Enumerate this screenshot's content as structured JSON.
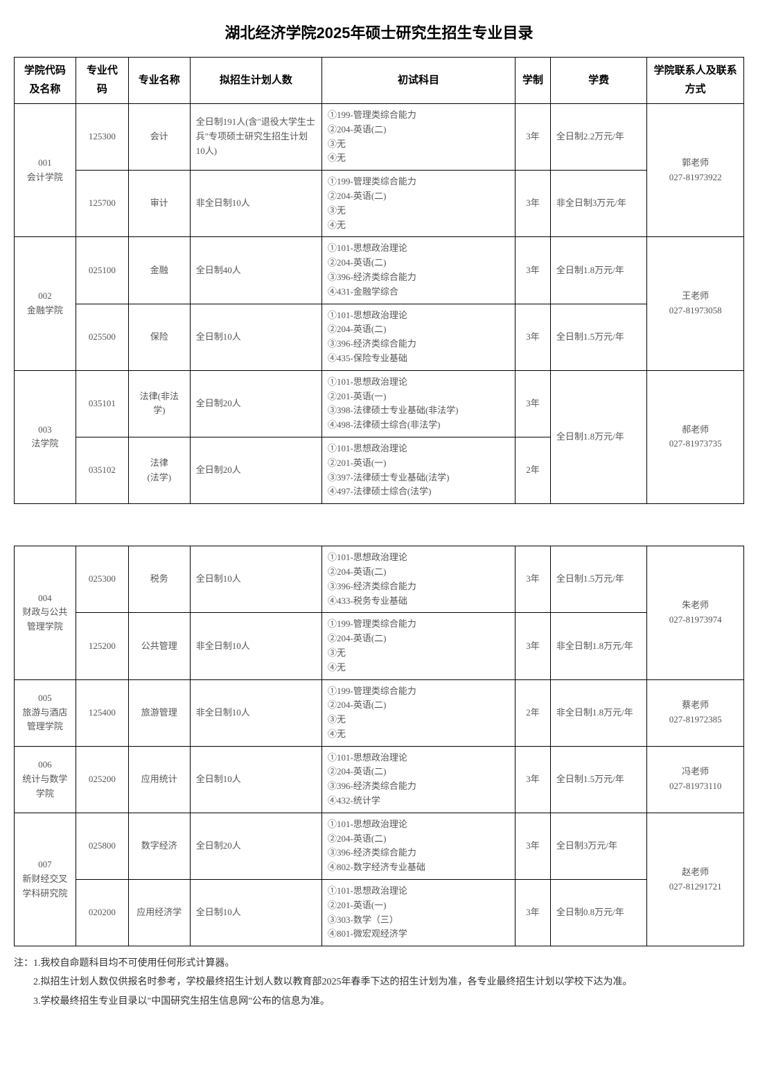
{
  "title": "湖北经济学院2025年硕士研究生招生专业目录",
  "headers": {
    "col1": "学院代码及名称",
    "col2": "专业代码",
    "col3": "专业名称",
    "col4": "拟招生计划人数",
    "col5": "初试科目",
    "col6": "学制",
    "col7": "学费",
    "col8": "学院联系人及联系方式"
  },
  "rows": [
    {
      "dept": "001\n会计学院",
      "deptRowspan": 2,
      "code": "125300",
      "name": "会计",
      "plan": "全日制191人(含\"退役大学生士兵\"专项硕士研究生招生计划10人)",
      "exam": "①199-管理类综合能力\n②204-英语(二)\n③无\n④无",
      "years": "3年",
      "fee": "全日制2.2万元/年",
      "contact": "郭老师\n027-81973922",
      "contactRowspan": 2
    },
    {
      "code": "125700",
      "name": "审计",
      "plan": "非全日制10人",
      "exam": "①199-管理类综合能力\n②204-英语(二)\n③无\n④无",
      "years": "3年",
      "fee": "非全日制3万元/年"
    },
    {
      "dept": "002\n金融学院",
      "deptRowspan": 2,
      "code": "025100",
      "name": "金融",
      "plan": "全日制40人",
      "exam": "①101-思想政治理论\n②204-英语(二)\n③396-经济类综合能力\n④431-金融学综合",
      "years": "3年",
      "fee": "全日制1.8万元/年",
      "contact": "王老师\n027-81973058",
      "contactRowspan": 2
    },
    {
      "code": "025500",
      "name": "保险",
      "plan": "全日制10人",
      "exam": "①101-思想政治理论\n②204-英语(二)\n③396-经济类综合能力\n④435-保险专业基础",
      "years": "3年",
      "fee": "全日制1.5万元/年"
    },
    {
      "dept": "003\n法学院",
      "deptRowspan": 2,
      "code": "035101",
      "name": "法律(非法学)",
      "plan": "全日制20人",
      "exam": "①101-思想政治理论\n②201-英语(一)\n③398-法律硕士专业基础(非法学)\n④498-法律硕士综合(非法学)",
      "years": "3年",
      "fee": "全日制1.8万元/年",
      "feeRowspan": 2,
      "contact": "郝老师\n027-81973735",
      "contactRowspan": 2
    },
    {
      "code": "035102",
      "name": "法律\n(法学)",
      "plan": "全日制20人",
      "exam": "①101-思想政治理论\n②201-英语(一)\n③397-法律硕士专业基础(法学)\n④497-法律硕士综合(法学)",
      "years": "2年"
    }
  ],
  "rows2": [
    {
      "dept": "004\n财政与公共管理学院",
      "deptRowspan": 2,
      "code": "025300",
      "name": "税务",
      "plan": "全日制10人",
      "exam": "①101-思想政治理论\n②204-英语(二)\n③396-经济类综合能力\n④433-税务专业基础",
      "years": "3年",
      "fee": "全日制1.5万元/年",
      "contact": "朱老师\n027-81973974",
      "contactRowspan": 2
    },
    {
      "code": "125200",
      "name": "公共管理",
      "plan": "非全日制10人",
      "exam": "①199-管理类综合能力\n②204-英语(二)\n③无\n④无",
      "years": "3年",
      "fee": "非全日制1.8万元/年"
    },
    {
      "dept": "005\n旅游与酒店管理学院",
      "deptRowspan": 1,
      "code": "125400",
      "name": "旅游管理",
      "plan": "非全日制10人",
      "exam": "①199-管理类综合能力\n②204-英语(二)\n③无\n④无",
      "years": "2年",
      "fee": "非全日制1.8万元/年",
      "contact": "蔡老师\n027-81972385",
      "contactRowspan": 1
    },
    {
      "dept": "006\n统计与数学学院",
      "deptRowspan": 1,
      "code": "025200",
      "name": "应用统计",
      "plan": "全日制10人",
      "exam": "①101-思想政治理论\n②204-英语(二)\n③396-经济类综合能力\n④432-统计学",
      "years": "3年",
      "fee": "全日制1.5万元/年",
      "contact": "冯老师\n027-81973110",
      "contactRowspan": 1
    },
    {
      "dept": "007\n新财经交叉学科研究院",
      "deptRowspan": 2,
      "code": "025800",
      "name": "数字经济",
      "plan": "全日制20人",
      "exam": "①101-思想政治理论\n②204-英语(二)\n③396-经济类综合能力\n④802-数字经济专业基础",
      "years": "3年",
      "fee": "全日制3万元/年",
      "contact": "赵老师\n027-81291721",
      "contactRowspan": 2
    },
    {
      "code": "020200",
      "name": "应用经济学",
      "plan": "全日制10人",
      "exam": "①101-思想政治理论\n②201-英语(一)\n③303-数学（三）\n④801-微宏观经济学",
      "years": "3年",
      "fee": "全日制0.8万元/年"
    }
  ],
  "notes": [
    "注：1.我校自命题科目均不可使用任何形式计算器。",
    "　　2.拟招生计划人数仅供报名时参考，学校最终招生计划人数以教育部2025年春季下达的招生计划为准，各专业最终招生计划以学校下达为准。",
    "　　3.学校最终招生专业目录以\"中国研究生招生信息网\"公布的信息为准。"
  ]
}
